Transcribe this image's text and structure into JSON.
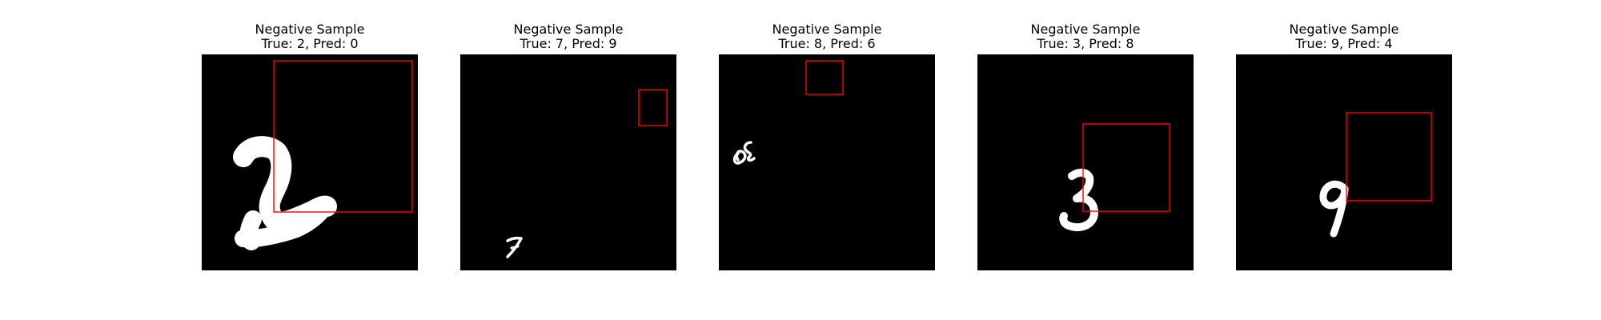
{
  "panels": [
    {
      "title": "Negative Sample",
      "subtitle": "True: 2, Pred: 0",
      "digit": "2",
      "box_color": "#ff0000"
    },
    {
      "title": "Negative Sample",
      "subtitle": "True: 7, Pred: 9",
      "digit": "7",
      "box_color": "#ff0000"
    },
    {
      "title": "Negative Sample",
      "subtitle": "True: 8, Pred: 6",
      "digit": "8",
      "box_color": "#ff0000"
    },
    {
      "title": "Negative Sample",
      "subtitle": "True: 3, Pred: 8",
      "digit": "3",
      "box_color": "#ff0000"
    },
    {
      "title": "Negative Sample",
      "subtitle": "True: 9, Pred: 4",
      "digit": "9",
      "box_color": "#ff0000"
    }
  ]
}
